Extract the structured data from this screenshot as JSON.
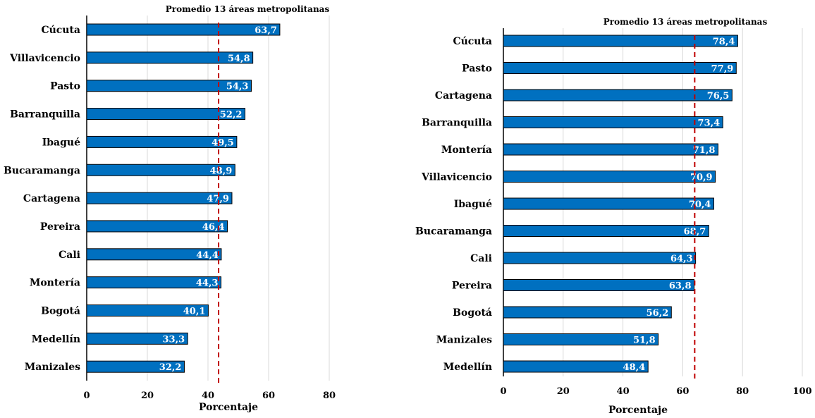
{
  "chart_data": [
    {
      "type": "bar",
      "orientation": "horizontal",
      "categories": [
        "Cúcuta",
        "Villavicencio",
        "Pasto",
        "Barranquilla",
        "Ibagué",
        "Bucaramanga",
        "Cartagena",
        "Pereira",
        "Cali",
        "Montería",
        "Bogotá",
        "Medellín",
        "Manizales"
      ],
      "values": [
        63.7,
        54.8,
        54.3,
        52.2,
        49.5,
        48.9,
        47.9,
        46.4,
        44.4,
        44.3,
        40.1,
        33.3,
        32.2
      ],
      "value_labels": [
        "63,7",
        "54,8",
        "54,3",
        "52,2",
        "49,5",
        "48,9",
        "47,9",
        "46,4",
        "44,4",
        "44,3",
        "40,1",
        "33,3",
        "32,2"
      ],
      "xlabel": "Porcentaje",
      "xlim": [
        0,
        80
      ],
      "xticks": [
        "0",
        "20",
        "40",
        "60",
        "80"
      ],
      "reference_line": {
        "label": "Promedio 13 áreas metropolitanas",
        "value": 43.5,
        "color": "#c00000",
        "style": "dashed"
      },
      "bar_color": "#0070c0",
      "grid": "vertical"
    },
    {
      "type": "bar",
      "orientation": "horizontal",
      "categories": [
        "Cúcuta",
        "Pasto",
        "Cartagena",
        "Barranquilla",
        "Montería",
        "Villavicencio",
        "Ibagué",
        "Bucaramanga",
        "Cali",
        "Pereira",
        "Bogotá",
        "Manizales",
        "Medellín"
      ],
      "values": [
        78.4,
        77.9,
        76.5,
        73.4,
        71.8,
        70.9,
        70.4,
        68.7,
        64.3,
        63.8,
        56.2,
        51.8,
        48.4
      ],
      "value_labels": [
        "78,4",
        "77,9",
        "76,5",
        "73,4",
        "71,8",
        "70,9",
        "70,4",
        "68,7",
        "64,3",
        "63,8",
        "56,2",
        "51,8",
        "48,4"
      ],
      "xlabel": "Porcentaje",
      "xlim": [
        0,
        100
      ],
      "xticks": [
        "0",
        "20",
        "40",
        "60",
        "80",
        "100"
      ],
      "reference_line": {
        "label": "Promedio 13 áreas metropolitanas",
        "value": 64.0,
        "color": "#c00000",
        "style": "dashed"
      },
      "bar_color": "#0070c0",
      "grid": "vertical"
    }
  ]
}
